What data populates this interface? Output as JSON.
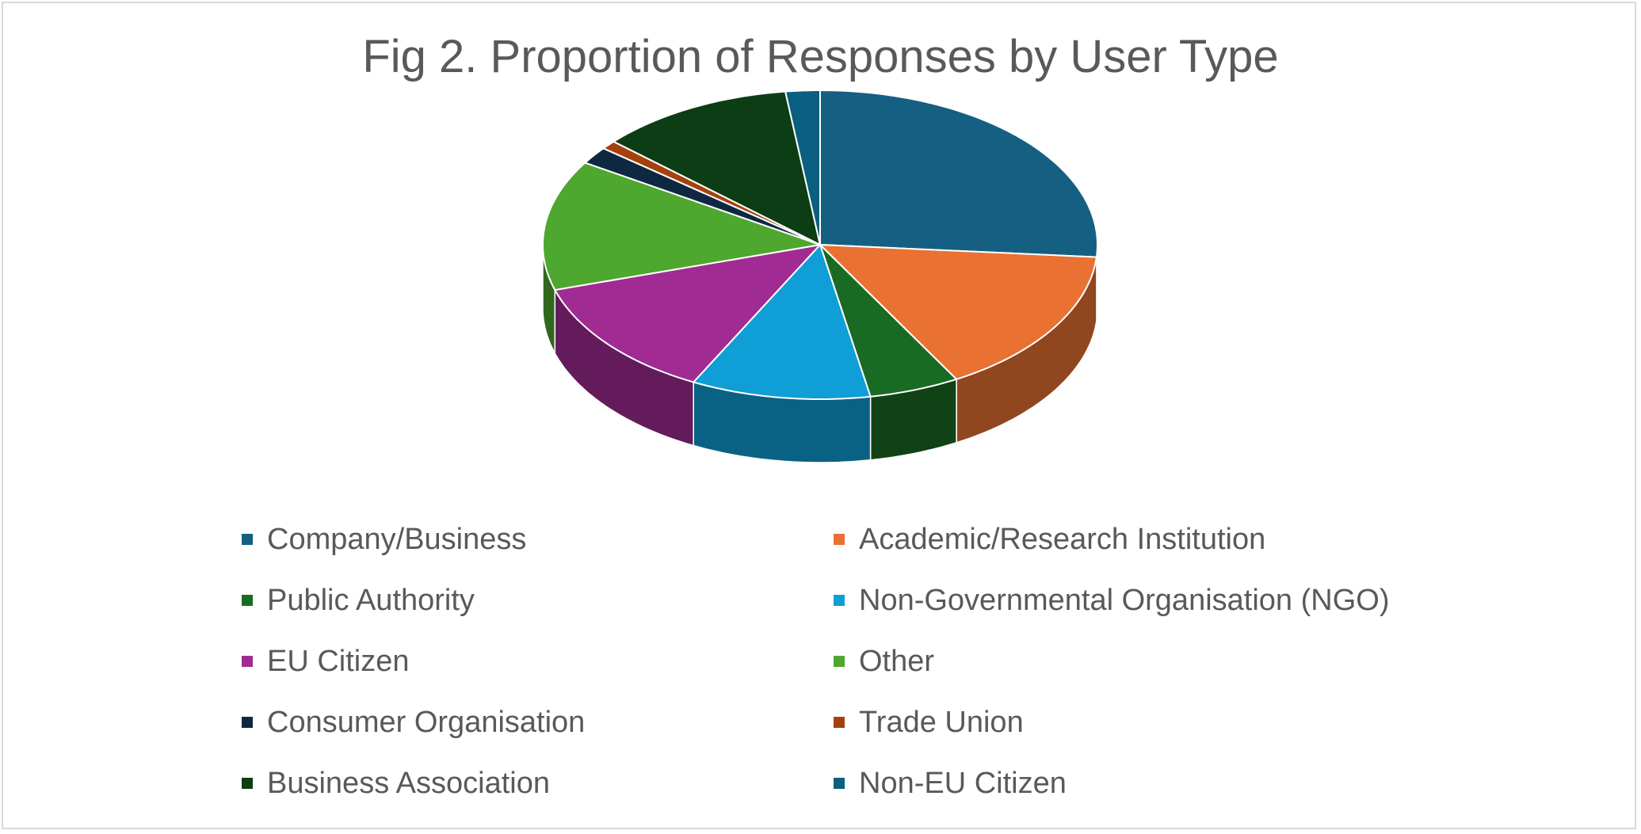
{
  "chart_data": {
    "type": "pie",
    "title": "Fig 2. Proportion of Responses by User Type",
    "series": [
      {
        "name": "Company/Business",
        "value": 28.9,
        "color": "#156082"
      },
      {
        "name": "Academic/Research Institution",
        "value": 17.1,
        "color": "#E97132"
      },
      {
        "name": "Public Authority",
        "value": 5.8,
        "color": "#196B24"
      },
      {
        "name": "Non-Governmental Organisation (NGO)",
        "value": 11.5,
        "color": "#0F9ED5"
      },
      {
        "name": "EU Citizen",
        "value": 14.0,
        "color": "#A02B93"
      },
      {
        "name": "Other",
        "value": 15.0,
        "color": "#4EA72E"
      },
      {
        "name": "Consumer Organisation",
        "value": 2.0,
        "color": "#0E2841"
      },
      {
        "name": "Trade Union",
        "value": 1.0,
        "color": "#A5400F"
      },
      {
        "name": "Business Association",
        "value": 12.5,
        "color": "#0D3D15"
      },
      {
        "name": "Non-EU Citizen",
        "value": 2.2,
        "color": "#0B5F80"
      }
    ],
    "start_angle_deg": 0,
    "direction": "clockwise",
    "style": "3d-exploded-none",
    "legend_position": "bottom",
    "legend_columns": 2
  }
}
